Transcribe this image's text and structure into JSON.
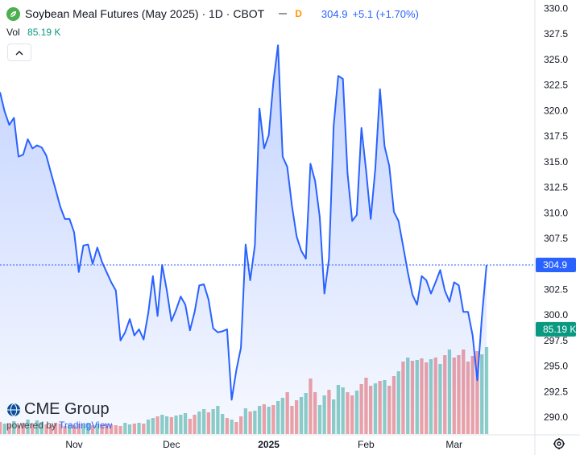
{
  "header": {
    "title": "Soybean Meal Futures (May 2025) · 1D · CBOT",
    "price_badge": "D",
    "price": "304.9",
    "change": "+5.1 (+1.70%)"
  },
  "volume": {
    "label": "Vol",
    "value": "85.19 K"
  },
  "watermark": {
    "brand": "CME Group",
    "powered_prefix": "powered by",
    "powered_brand": "TradingView"
  },
  "icons": {
    "symbol": "soybean-leaf-icon",
    "collapse": "chevron-up-icon",
    "settings": "gear-icon",
    "logo": "cme-globe-icon"
  },
  "colors": {
    "line": "#2962ff",
    "area_top": "rgba(41,98,255,0.28)",
    "area_bottom": "rgba(41,98,255,0.04)",
    "vol_up": "#8fd0c5",
    "vol_down": "#f2a3a3",
    "vol_badge": "#089981",
    "price_badge": "#2962ff"
  },
  "chart_data": {
    "type": "line",
    "title": "Soybean Meal Futures (May 2025) · 1D · CBOT",
    "y_ticks": [
      "330.0",
      "327.5",
      "325.0",
      "322.5",
      "320.0",
      "317.5",
      "315.0",
      "312.5",
      "310.0",
      "307.5",
      "302.5",
      "300.0",
      "297.5",
      "295.0",
      "292.5",
      "290.0"
    ],
    "ylim": [
      289.0,
      330.2
    ],
    "x_ticks": [
      {
        "label": "Nov",
        "index": 16
      },
      {
        "label": "Dec",
        "index": 37
      },
      {
        "label": "2025",
        "index": 58
      },
      {
        "label": "Feb",
        "index": 79
      },
      {
        "label": "Mar",
        "index": 98
      }
    ],
    "last_price": {
      "value": 304.9,
      "label": "304.9"
    },
    "volume_badge": {
      "value": 298.6,
      "label": "85.19 K"
    },
    "grid": false,
    "series": [
      {
        "values": [
          321.8,
          319.9,
          318.6,
          319.3,
          315.5,
          315.7,
          317.2,
          316.3,
          316.6,
          316.4,
          315.6,
          313.9,
          312.3,
          310.6,
          309.4,
          309.4,
          308.1,
          304.2,
          306.8,
          306.9,
          305.0,
          306.6,
          305.2,
          304.2,
          303.2,
          302.4,
          297.5,
          298.3,
          299.6,
          298.0,
          298.6,
          297.6,
          300.2,
          303.8,
          299.9,
          304.9,
          302.4,
          299.4,
          300.5,
          301.8,
          301.0,
          298.5,
          300.3,
          302.9,
          303.0,
          301.5,
          298.7,
          298.3,
          298.4,
          298.6,
          291.7,
          294.6,
          296.8,
          306.9,
          303.4,
          306.8,
          320.2,
          316.3,
          317.6,
          322.8,
          326.4,
          315.5,
          314.5,
          310.7,
          307.7,
          306.3,
          305.5,
          314.8,
          313.1,
          309.6,
          302.1,
          305.5,
          318.5,
          323.4,
          323.1,
          313.9,
          309.2,
          309.8,
          318.3,
          314.2,
          309.4,
          314.3,
          322.1,
          316.5,
          314.6,
          310.1,
          309.2,
          306.7,
          304.2,
          302.0,
          301.0,
          303.8,
          303.4,
          302.1,
          303.2,
          304.4,
          302.4,
          301.3,
          303.2,
          302.9,
          300.3,
          300.3,
          298.0,
          293.6,
          299.8,
          304.9
        ]
      }
    ],
    "volume": {
      "scale_reference": {
        "value": "85.19 K",
        "height": 85.19
      },
      "bars": [
        {
          "h": 15,
          "up": false
        },
        {
          "h": 13,
          "up": true
        },
        {
          "h": 12,
          "up": false
        },
        {
          "h": 16,
          "up": true
        },
        {
          "h": 11,
          "up": false
        },
        {
          "h": 14,
          "up": false
        },
        {
          "h": 18,
          "up": true
        },
        {
          "h": 13,
          "up": false
        },
        {
          "h": 17,
          "up": true
        },
        {
          "h": 15,
          "up": true
        },
        {
          "h": 12,
          "up": false
        },
        {
          "h": 11,
          "up": false
        },
        {
          "h": 14,
          "up": false
        },
        {
          "h": 13,
          "up": false
        },
        {
          "h": 10,
          "up": false
        },
        {
          "h": 12,
          "up": true
        },
        {
          "h": 11,
          "up": false
        },
        {
          "h": 13,
          "up": false
        },
        {
          "h": 12,
          "up": true
        },
        {
          "h": 14,
          "up": true
        },
        {
          "h": 11,
          "up": false
        },
        {
          "h": 13,
          "up": true
        },
        {
          "h": 12,
          "up": false
        },
        {
          "h": 13,
          "up": false
        },
        {
          "h": 12,
          "up": false
        },
        {
          "h": 11,
          "up": false
        },
        {
          "h": 10,
          "up": false
        },
        {
          "h": 14,
          "up": true
        },
        {
          "h": 12,
          "up": true
        },
        {
          "h": 13,
          "up": false
        },
        {
          "h": 14,
          "up": true
        },
        {
          "h": 13,
          "up": false
        },
        {
          "h": 18,
          "up": true
        },
        {
          "h": 20,
          "up": true
        },
        {
          "h": 22,
          "up": false
        },
        {
          "h": 24,
          "up": true
        },
        {
          "h": 22,
          "up": true
        },
        {
          "h": 21,
          "up": false
        },
        {
          "h": 23,
          "up": true
        },
        {
          "h": 24,
          "up": true
        },
        {
          "h": 26,
          "up": true
        },
        {
          "h": 19,
          "up": false
        },
        {
          "h": 24,
          "up": false
        },
        {
          "h": 28,
          "up": true
        },
        {
          "h": 31,
          "up": true
        },
        {
          "h": 27,
          "up": false
        },
        {
          "h": 31,
          "up": true
        },
        {
          "h": 35,
          "up": true
        },
        {
          "h": 25,
          "up": true
        },
        {
          "h": 20,
          "up": false
        },
        {
          "h": 18,
          "up": true
        },
        {
          "h": 15,
          "up": false
        },
        {
          "h": 22,
          "up": false
        },
        {
          "h": 32,
          "up": true
        },
        {
          "h": 28,
          "up": false
        },
        {
          "h": 29,
          "up": true
        },
        {
          "h": 35,
          "up": true
        },
        {
          "h": 37,
          "up": false
        },
        {
          "h": 34,
          "up": true
        },
        {
          "h": 36,
          "up": false
        },
        {
          "h": 41,
          "up": true
        },
        {
          "h": 45,
          "up": true
        },
        {
          "h": 52,
          "up": false
        },
        {
          "h": 35,
          "up": false
        },
        {
          "h": 42,
          "up": false
        },
        {
          "h": 46,
          "up": true
        },
        {
          "h": 51,
          "up": true
        },
        {
          "h": 69,
          "up": false
        },
        {
          "h": 52,
          "up": false
        },
        {
          "h": 36,
          "up": true
        },
        {
          "h": 48,
          "up": true
        },
        {
          "h": 55,
          "up": false
        },
        {
          "h": 43,
          "up": true
        },
        {
          "h": 61,
          "up": true
        },
        {
          "h": 58,
          "up": true
        },
        {
          "h": 52,
          "up": false
        },
        {
          "h": 48,
          "up": false
        },
        {
          "h": 54,
          "up": true
        },
        {
          "h": 62,
          "up": false
        },
        {
          "h": 70,
          "up": false
        },
        {
          "h": 60,
          "up": false
        },
        {
          "h": 63,
          "up": true
        },
        {
          "h": 66,
          "up": false
        },
        {
          "h": 67,
          "up": true
        },
        {
          "h": 60,
          "up": false
        },
        {
          "h": 72,
          "up": false
        },
        {
          "h": 78,
          "up": true
        },
        {
          "h": 90,
          "up": false
        },
        {
          "h": 95,
          "up": true
        },
        {
          "h": 91,
          "up": false
        },
        {
          "h": 92,
          "up": true
        },
        {
          "h": 94,
          "up": false
        },
        {
          "h": 89,
          "up": false
        },
        {
          "h": 93,
          "up": true
        },
        {
          "h": 95,
          "up": false
        },
        {
          "h": 87,
          "up": true
        },
        {
          "h": 98,
          "up": false
        },
        {
          "h": 105,
          "up": true
        },
        {
          "h": 95,
          "up": false
        },
        {
          "h": 98,
          "up": false
        },
        {
          "h": 105,
          "up": false
        },
        {
          "h": 90,
          "up": false
        },
        {
          "h": 97,
          "up": false
        },
        {
          "h": 103,
          "up": false
        },
        {
          "h": 99,
          "up": true
        },
        {
          "h": 108,
          "up": true
        }
      ]
    }
  }
}
